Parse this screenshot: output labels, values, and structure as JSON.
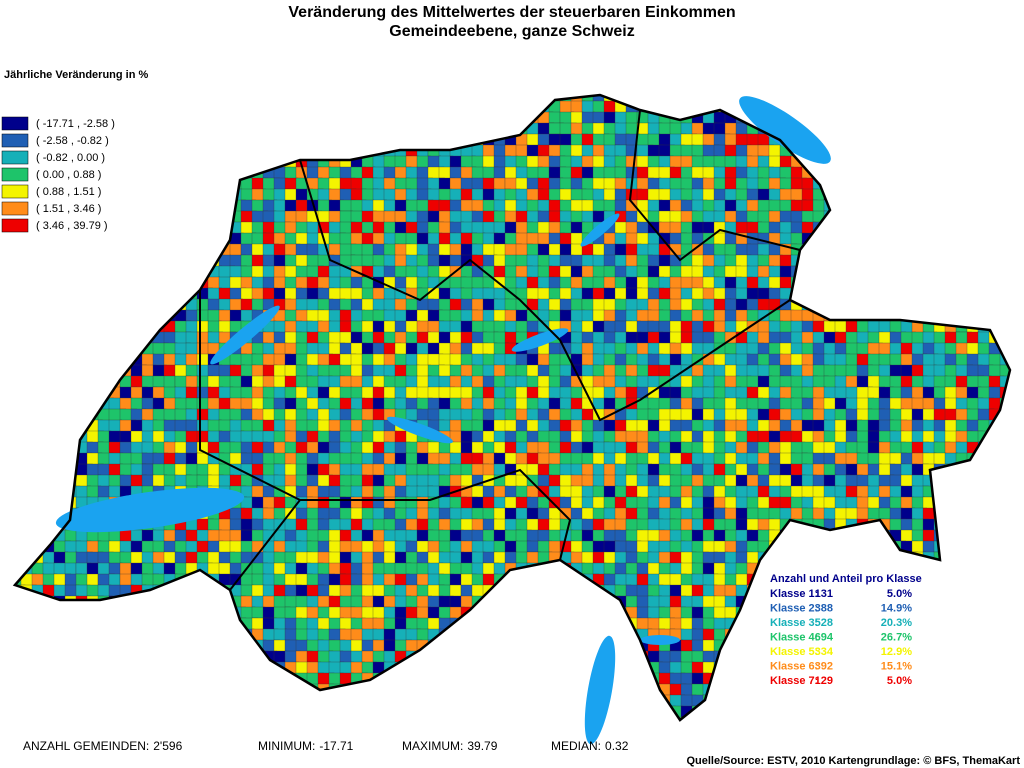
{
  "title": [
    "Veränderung des Mittelwertes der steuerbaren Einkommen",
    "Gemeindeebene, ganze Schweiz"
  ],
  "legend": {
    "title": "Jährliche Veränderung in %",
    "classes": [
      {
        "label": "( -17.71 , -2.58 )",
        "color": "#00008b"
      },
      {
        "label": "( -2.58 , -0.82 )",
        "color": "#1f5fb4"
      },
      {
        "label": "( -0.82 , 0.00 )",
        "color": "#16b0b8"
      },
      {
        "label": "( 0.00 , 0.88 )",
        "color": "#1ec46a"
      },
      {
        "label": "( 0.88 , 1.51 )",
        "color": "#f4f400"
      },
      {
        "label": "( 1.51 , 3.46 )",
        "color": "#ff8c1a"
      },
      {
        "label": "( 3.46 , 39.79 )",
        "color": "#ee0000"
      }
    ]
  },
  "class_stats": {
    "title": "Anzahl und Anteil pro Klasse",
    "rows": [
      {
        "label": "Klasse 1:",
        "count": "131",
        "share": "5.0%"
      },
      {
        "label": "Klasse 2:",
        "count": "388",
        "share": "14.9%"
      },
      {
        "label": "Klasse 3:",
        "count": "528",
        "share": "20.3%"
      },
      {
        "label": "Klasse 4:",
        "count": "694",
        "share": "26.7%"
      },
      {
        "label": "Klasse 5:",
        "count": "334",
        "share": "12.9%"
      },
      {
        "label": "Klasse 6:",
        "count": "392",
        "share": "15.1%"
      },
      {
        "label": "Klasse 7:",
        "count": "129",
        "share": "5.0%"
      }
    ]
  },
  "footer": {
    "stats": [
      {
        "label": "ANZAHL GEMEINDEN:",
        "value": "2'596"
      },
      {
        "label": "MINIMUM:",
        "value": "-17.71"
      },
      {
        "label": "MAXIMUM:",
        "value": "39.79"
      },
      {
        "label": "MEDIAN:",
        "value": "0.32"
      }
    ],
    "source": "Quelle/Source: ESTV, 2010 Kartengrundlage: © BFS, ThemaKart"
  }
}
